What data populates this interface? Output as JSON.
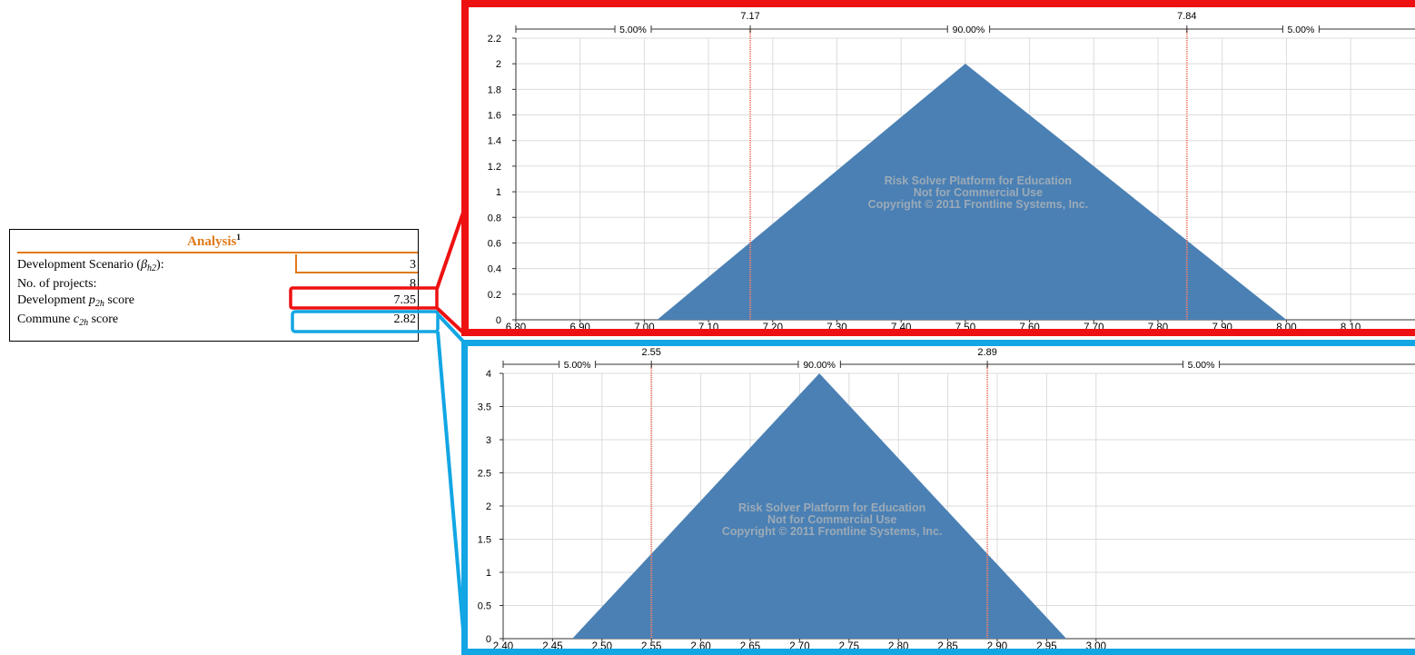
{
  "analysis": {
    "title": "Analysis",
    "title_sup": "1",
    "rows": [
      {
        "label_pre": "Development Scenario (",
        "label_sym": "β",
        "label_sub": "h2",
        "label_post": "):",
        "value": "3"
      },
      {
        "label_pre": "No. of projects:",
        "value": "8"
      },
      {
        "label_pre": "Development ",
        "label_sym": "p",
        "label_sub": "2h",
        "label_post": " score",
        "value": "7.35"
      },
      {
        "label_pre": "Commune ",
        "label_sym": "c",
        "label_sub": "2h",
        "label_post": " score",
        "value": "2.82"
      }
    ]
  },
  "colors": {
    "fill": "#4a80b4",
    "red_highlight": "#ee1111",
    "blue_highlight": "#12a6e4",
    "orange_rule": "#e07a1a",
    "marker": "#f08070",
    "watermark": "#b8b8b8"
  },
  "chart_data": [
    {
      "type": "area",
      "shape": "triangular distribution",
      "x": [
        7.02,
        7.5,
        8.0
      ],
      "y": [
        0,
        2,
        0
      ],
      "xlim": [
        6.8,
        8.2
      ],
      "ylim": [
        0,
        2.2
      ],
      "xticks": [
        "6.80",
        "6.90",
        "7.00",
        "7.10",
        "7.20",
        "7.30",
        "7.40",
        "7.50",
        "7.60",
        "7.70",
        "7.80",
        "7.90",
        "8.00",
        "8.10"
      ],
      "yticks": [
        "0",
        "0.2",
        "0.4",
        "0.6",
        "0.8",
        "1",
        "1.2",
        "1.4",
        "1.6",
        "1.8",
        "2",
        "2.2"
      ],
      "xtick_values": [
        6.8,
        6.9,
        7.0,
        7.1,
        7.2,
        7.3,
        7.4,
        7.5,
        7.6,
        7.7,
        7.8,
        7.9,
        8.0,
        8.1
      ],
      "ytick_values": [
        0,
        0.2,
        0.4,
        0.6,
        0.8,
        1,
        1.2,
        1.4,
        1.6,
        1.8,
        2,
        2.2
      ],
      "lower_marker": {
        "value": 7.165,
        "label": "7.17"
      },
      "upper_marker": {
        "value": 7.845,
        "label": "7.84"
      },
      "band_labels": [
        "5.00%",
        "90.00%",
        "5.00%"
      ],
      "watermark": [
        "Risk Solver Platform for Education",
        "Not for Commercial Use",
        "Copyright © 2011 Frontline Systems, Inc."
      ],
      "grid": true
    },
    {
      "type": "area",
      "shape": "triangular distribution",
      "x": [
        2.47,
        2.72,
        2.97
      ],
      "y": [
        0,
        4,
        0
      ],
      "xlim": [
        2.4,
        3.0
      ],
      "ylim": [
        0,
        4
      ],
      "xticks": [
        "2.40",
        "2.45",
        "2.50",
        "2.55",
        "2.60",
        "2.65",
        "2.70",
        "2.75",
        "2.80",
        "2.85",
        "2.90",
        "2.95",
        "3.00"
      ],
      "yticks": [
        "0",
        "0.5",
        "1",
        "1.5",
        "2",
        "2.5",
        "3",
        "3.5",
        "4"
      ],
      "xtick_values": [
        2.4,
        2.45,
        2.5,
        2.55,
        2.6,
        2.65,
        2.7,
        2.75,
        2.8,
        2.85,
        2.9,
        2.95,
        3.0
      ],
      "ytick_values": [
        0,
        0.5,
        1,
        1.5,
        2,
        2.5,
        3,
        3.5,
        4
      ],
      "lower_marker": {
        "value": 2.55,
        "label": "2.55"
      },
      "upper_marker": {
        "value": 2.89,
        "label": "2.89"
      },
      "band_labels": [
        "5.00%",
        "90.00%",
        "5.00%"
      ],
      "watermark": [
        "Risk Solver Platform for Education",
        "Not for Commercial Use",
        "Copyright © 2011 Frontline Systems, Inc."
      ],
      "grid": true
    }
  ]
}
